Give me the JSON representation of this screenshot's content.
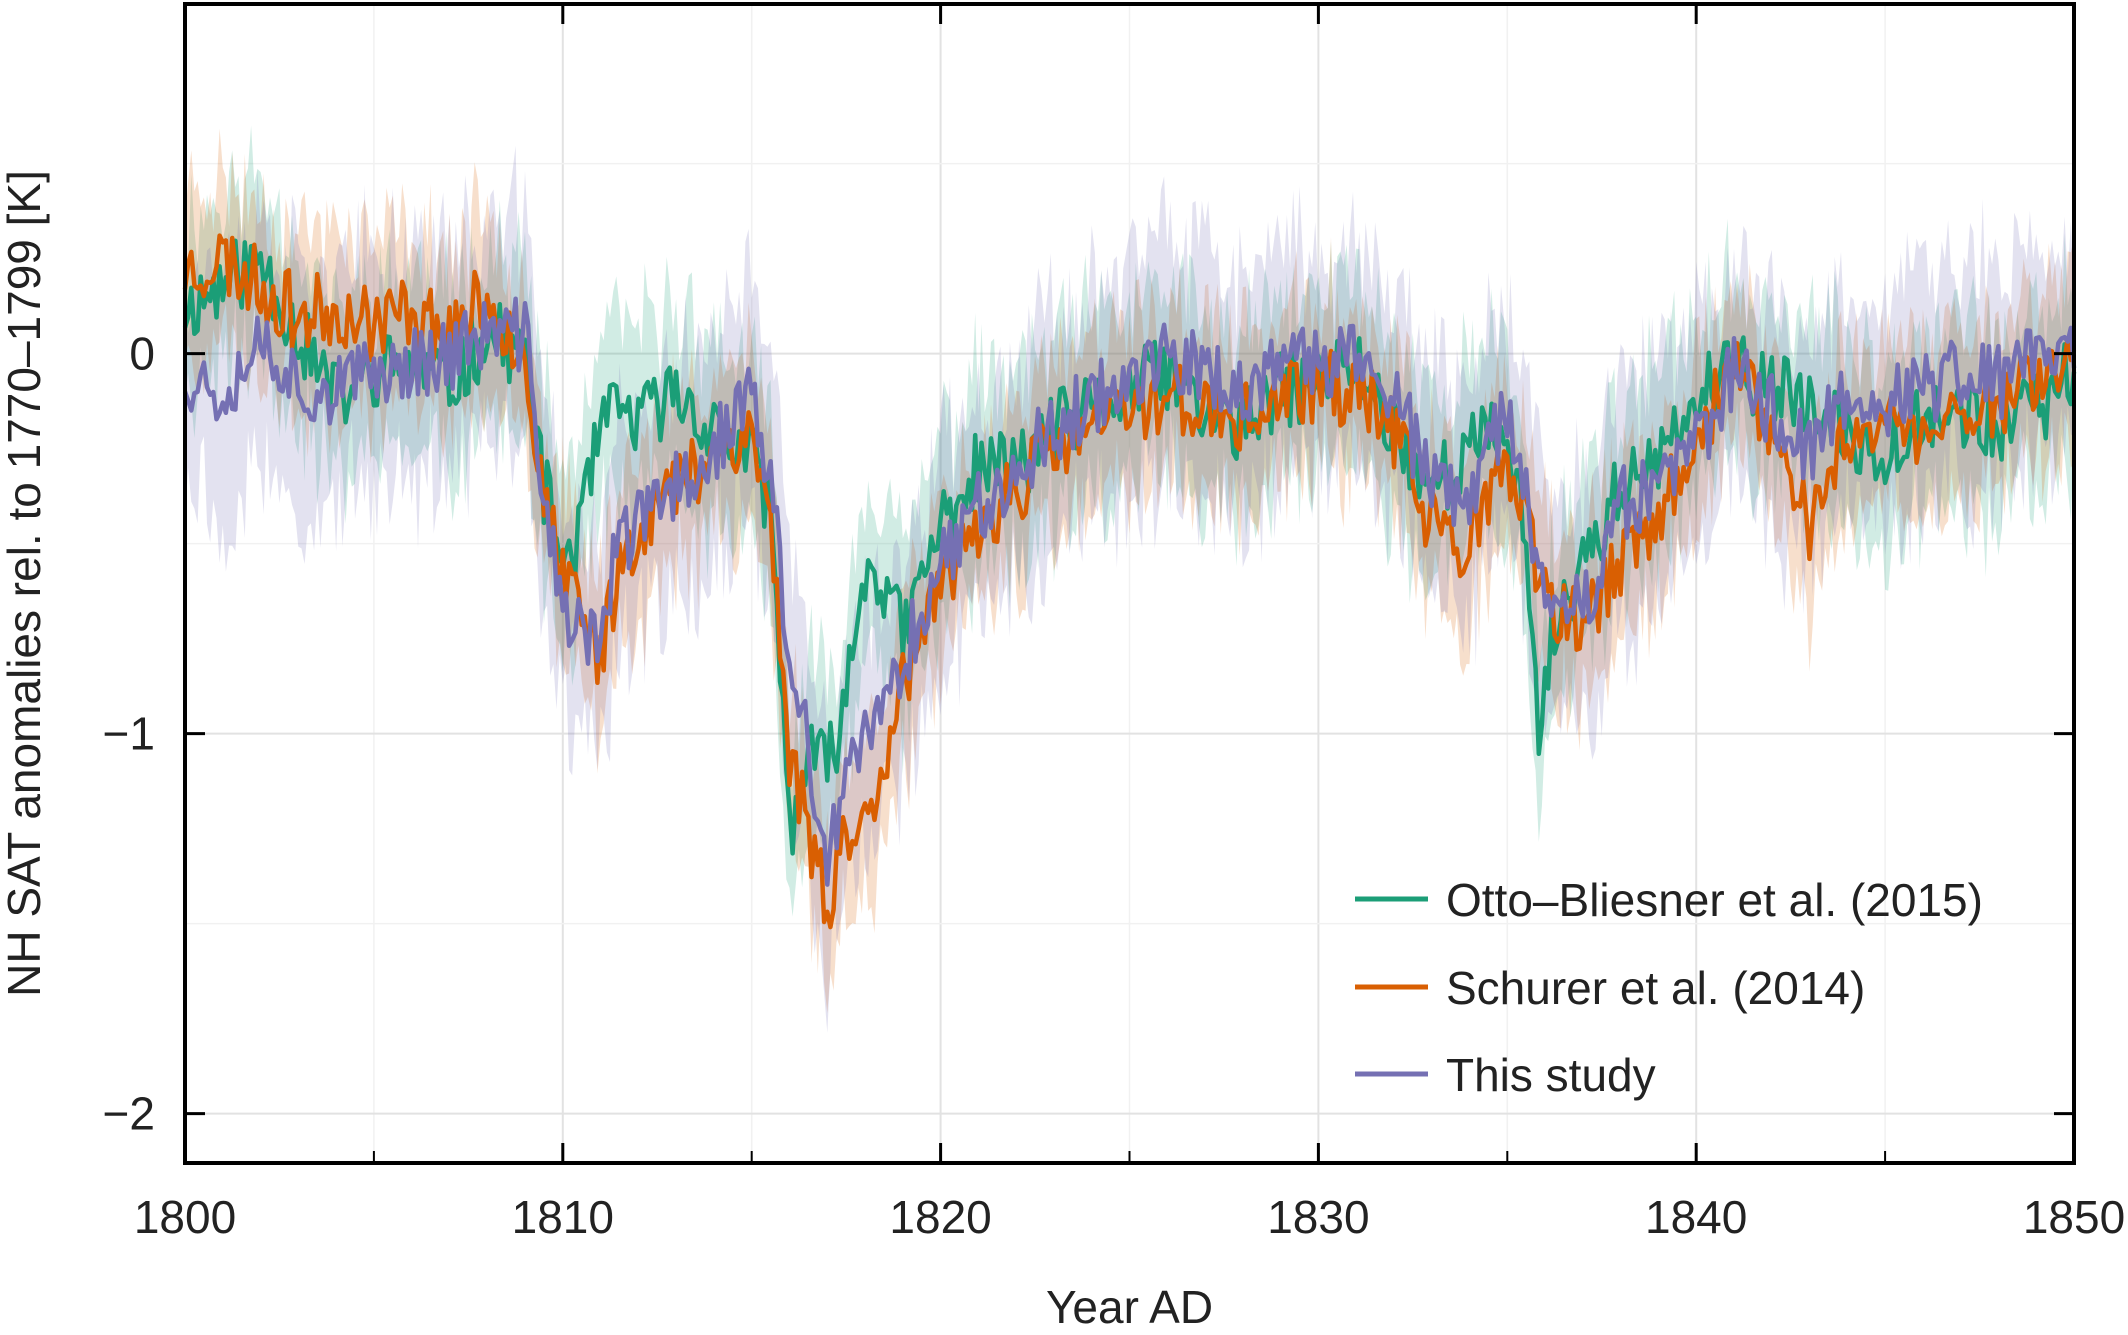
{
  "chart_data": {
    "type": "line",
    "title": "",
    "xlabel": "Year AD",
    "ylabel": "NH SAT anomalies rel. to 1770–1799 [K]",
    "xlim": [
      1800,
      1850
    ],
    "ylim": [
      -2.13,
      0.92
    ],
    "grid": true,
    "legend_position": "bottom-right",
    "x_ticks": [
      1800,
      1810,
      1820,
      1830,
      1840,
      1850
    ],
    "x_tick_labels": [
      "1800",
      "1810",
      "1820",
      "1830",
      "1840",
      "1850"
    ],
    "y_ticks": [
      -2,
      -1,
      0
    ],
    "y_tick_labels": [
      "−2",
      "−1",
      "0"
    ],
    "colors": {
      "otto_bliesner": "#1b9e77",
      "schurer": "#d95f02",
      "this_study": "#7570b3"
    },
    "series": [
      {
        "name": "Otto–Bliesner et al. (2015)",
        "color": "#1b9e77",
        "band_width": 0.22,
        "x": [
          1800,
          1801,
          1802,
          1803,
          1804,
          1805,
          1806,
          1807,
          1808,
          1809,
          1809.5,
          1810,
          1810.5,
          1811,
          1811.5,
          1812,
          1813,
          1814,
          1815,
          1815.5,
          1816,
          1816.5,
          1817,
          1817.5,
          1818,
          1818.5,
          1819,
          1820,
          1821,
          1822,
          1823,
          1824,
          1825,
          1826,
          1827,
          1828,
          1829,
          1830,
          1831,
          1832,
          1833,
          1834,
          1835,
          1835.5,
          1835.8,
          1836,
          1836.5,
          1837,
          1838,
          1839,
          1840,
          1841,
          1842,
          1843,
          1844,
          1845,
          1846,
          1847,
          1848,
          1849,
          1850
        ],
        "values": [
          0.12,
          0.18,
          0.25,
          0.05,
          -0.12,
          -0.05,
          -0.02,
          -0.08,
          0.05,
          0.0,
          -0.35,
          -0.55,
          -0.45,
          -0.2,
          -0.15,
          -0.18,
          -0.1,
          -0.2,
          -0.28,
          -0.4,
          -1.25,
          -1.05,
          -1.1,
          -0.9,
          -0.55,
          -0.6,
          -0.75,
          -0.45,
          -0.3,
          -0.3,
          -0.2,
          -0.15,
          -0.1,
          -0.05,
          -0.15,
          -0.2,
          -0.1,
          -0.08,
          -0.02,
          -0.2,
          -0.35,
          -0.25,
          -0.2,
          -0.5,
          -0.98,
          -0.85,
          -0.65,
          -0.55,
          -0.35,
          -0.3,
          -0.12,
          -0.05,
          -0.08,
          -0.15,
          -0.22,
          -0.25,
          -0.15,
          -0.15,
          -0.2,
          -0.15,
          -0.05
        ]
      },
      {
        "name": "Schurer et al. (2014)",
        "color": "#d95f02",
        "band_width": 0.2,
        "x": [
          1800,
          1801,
          1802,
          1803,
          1804,
          1805,
          1806,
          1807,
          1808,
          1809,
          1809.5,
          1810,
          1810.5,
          1811,
          1811.5,
          1812,
          1813,
          1814,
          1815,
          1815.5,
          1816,
          1816.5,
          1817,
          1817.5,
          1818,
          1818.5,
          1819,
          1820,
          1821,
          1822,
          1823,
          1824,
          1825,
          1826,
          1827,
          1828,
          1829,
          1830,
          1831,
          1832,
          1833,
          1834,
          1835,
          1835.5,
          1835.8,
          1836,
          1836.5,
          1837,
          1838,
          1839,
          1840,
          1841,
          1842,
          1843,
          1844,
          1845,
          1846,
          1847,
          1848,
          1849,
          1850
        ],
        "values": [
          0.22,
          0.25,
          0.18,
          0.1,
          0.12,
          0.08,
          0.12,
          0.05,
          0.15,
          0.0,
          -0.4,
          -0.6,
          -0.7,
          -0.8,
          -0.55,
          -0.45,
          -0.35,
          -0.25,
          -0.2,
          -0.45,
          -1.05,
          -1.25,
          -1.45,
          -1.25,
          -1.25,
          -1.05,
          -0.85,
          -0.65,
          -0.45,
          -0.35,
          -0.25,
          -0.2,
          -0.15,
          -0.1,
          -0.15,
          -0.18,
          -0.12,
          -0.08,
          -0.1,
          -0.2,
          -0.45,
          -0.5,
          -0.3,
          -0.45,
          -0.6,
          -0.65,
          -0.7,
          -0.72,
          -0.55,
          -0.45,
          -0.2,
          -0.05,
          -0.2,
          -0.45,
          -0.2,
          -0.18,
          -0.22,
          -0.15,
          -0.12,
          -0.05,
          -0.02
        ]
      },
      {
        "name": "This study",
        "color": "#7570b3",
        "band_width": 0.28,
        "x": [
          1800,
          1801,
          1802,
          1803,
          1804,
          1805,
          1806,
          1807,
          1808,
          1809,
          1809.5,
          1810,
          1810.5,
          1811,
          1811.5,
          1812,
          1813,
          1814,
          1815,
          1815.5,
          1816,
          1816.5,
          1817,
          1817.5,
          1818,
          1818.5,
          1819,
          1820,
          1821,
          1822,
          1823,
          1824,
          1825,
          1826,
          1827,
          1828,
          1829,
          1830,
          1831,
          1832,
          1833,
          1834,
          1835,
          1835.5,
          1835.8,
          1836,
          1836.5,
          1837,
          1838,
          1839,
          1840,
          1841,
          1842,
          1843,
          1844,
          1845,
          1846,
          1847,
          1848,
          1849,
          1850
        ],
        "values": [
          -0.05,
          -0.1,
          0.05,
          -0.08,
          -0.1,
          -0.05,
          -0.02,
          0.0,
          0.05,
          0.05,
          -0.35,
          -0.7,
          -0.75,
          -0.72,
          -0.5,
          -0.45,
          -0.35,
          -0.25,
          -0.1,
          -0.35,
          -0.8,
          -1.05,
          -1.35,
          -1.15,
          -1.0,
          -0.95,
          -0.8,
          -0.55,
          -0.4,
          -0.3,
          -0.2,
          -0.12,
          -0.05,
          -0.02,
          -0.05,
          -0.1,
          -0.05,
          -0.02,
          0.0,
          -0.1,
          -0.35,
          -0.4,
          -0.15,
          -0.35,
          -0.6,
          -0.62,
          -0.6,
          -0.68,
          -0.4,
          -0.35,
          -0.25,
          -0.05,
          -0.15,
          -0.25,
          -0.1,
          -0.12,
          -0.1,
          -0.05,
          -0.08,
          0.02,
          0.0
        ]
      }
    ]
  }
}
